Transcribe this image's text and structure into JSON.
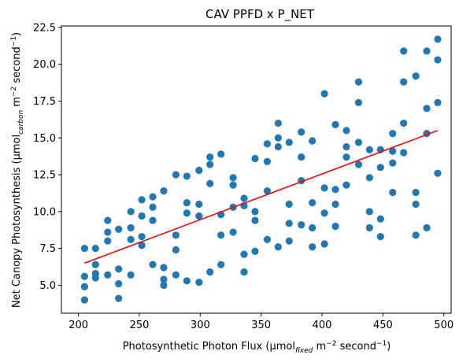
{
  "chart_data": {
    "type": "scatter",
    "title": "CAV PPFD x P_NET",
    "xlabel": {
      "prefix": "Photosynthetic Photon Flux (μmol",
      "sub": "fixed",
      "mid": " m",
      "sup1": "−2",
      "mid2": " second",
      "sup2": "−1",
      "suffix": ")"
    },
    "ylabel": {
      "prefix": "Net Canopy Photosynthesis (μmol",
      "sub": "carbon",
      "mid": " m",
      "sup1": "−2",
      "mid2": " second",
      "sup2": "−1",
      "suffix": ")"
    },
    "xlim": [
      186,
      506
    ],
    "ylim": [
      3.1,
      22.6
    ],
    "xticks": [
      200,
      250,
      300,
      350,
      400,
      450,
      500
    ],
    "yticks": [
      5.0,
      7.5,
      10.0,
      12.5,
      15.0,
      17.5,
      20.0,
      22.5
    ],
    "ytick_labels": [
      "5.0",
      "7.5",
      "10.0",
      "12.5",
      "15.0",
      "17.5",
      "20.0",
      "22.5"
    ],
    "grid": false,
    "point_color": "#1f77b4",
    "line_color": "#ff0000",
    "points": [
      [
        205,
        7.5
      ],
      [
        205,
        5.6
      ],
      [
        205,
        4.9
      ],
      [
        205,
        4.0
      ],
      [
        214,
        7.5
      ],
      [
        214,
        6.4
      ],
      [
        214,
        5.8
      ],
      [
        214,
        5.5
      ],
      [
        224,
        9.4
      ],
      [
        224,
        8.6
      ],
      [
        224,
        8.0
      ],
      [
        224,
        5.7
      ],
      [
        233,
        8.8
      ],
      [
        233,
        6.1
      ],
      [
        233,
        5.1
      ],
      [
        233,
        4.1
      ],
      [
        243,
        10.0
      ],
      [
        243,
        8.9
      ],
      [
        243,
        8.1
      ],
      [
        243,
        5.7
      ],
      [
        252,
        10.8
      ],
      [
        252,
        9.7
      ],
      [
        252,
        8.3
      ],
      [
        252,
        7.7
      ],
      [
        261,
        11.0
      ],
      [
        261,
        10.3
      ],
      [
        261,
        9.4
      ],
      [
        261,
        6.4
      ],
      [
        270,
        11.4
      ],
      [
        270,
        6.2
      ],
      [
        270,
        5.4
      ],
      [
        270,
        5.0
      ],
      [
        280,
        12.5
      ],
      [
        280,
        8.4
      ],
      [
        280,
        7.4
      ],
      [
        280,
        5.7
      ],
      [
        289,
        12.4
      ],
      [
        289,
        10.6
      ],
      [
        289,
        9.9
      ],
      [
        289,
        5.3
      ],
      [
        299,
        12.8
      ],
      [
        299,
        10.5
      ],
      [
        299,
        9.7
      ],
      [
        299,
        5.2
      ],
      [
        308,
        13.7
      ],
      [
        308,
        13.2
      ],
      [
        308,
        11.9
      ],
      [
        308,
        5.9
      ],
      [
        317,
        13.9
      ],
      [
        317,
        9.8
      ],
      [
        317,
        8.4
      ],
      [
        317,
        6.4
      ],
      [
        327,
        12.3
      ],
      [
        327,
        11.8
      ],
      [
        327,
        10.3
      ],
      [
        327,
        8.6
      ],
      [
        336,
        10.9
      ],
      [
        336,
        10.4
      ],
      [
        336,
        7.1
      ],
      [
        336,
        5.9
      ],
      [
        345,
        13.6
      ],
      [
        345,
        10.0
      ],
      [
        345,
        9.4
      ],
      [
        345,
        7.3
      ],
      [
        355,
        14.6
      ],
      [
        355,
        13.4
      ],
      [
        355,
        11.4
      ],
      [
        355,
        8.1
      ],
      [
        364,
        16.0
      ],
      [
        364,
        15.0
      ],
      [
        364,
        14.4
      ],
      [
        364,
        7.6
      ],
      [
        373,
        14.7
      ],
      [
        373,
        10.5
      ],
      [
        373,
        9.2
      ],
      [
        373,
        8.0
      ],
      [
        383,
        15.4
      ],
      [
        383,
        13.7
      ],
      [
        383,
        12.1
      ],
      [
        383,
        9.1
      ],
      [
        392,
        14.8
      ],
      [
        392,
        10.6
      ],
      [
        392,
        8.9
      ],
      [
        392,
        7.6
      ],
      [
        402,
        18.0
      ],
      [
        402,
        11.6
      ],
      [
        402,
        9.9
      ],
      [
        402,
        7.8
      ],
      [
        411,
        15.9
      ],
      [
        411,
        11.5
      ],
      [
        411,
        10.5
      ],
      [
        411,
        9.0
      ],
      [
        420,
        15.5
      ],
      [
        420,
        14.4
      ],
      [
        420,
        13.7
      ],
      [
        420,
        11.8
      ],
      [
        430,
        18.8
      ],
      [
        430,
        17.4
      ],
      [
        430,
        14.7
      ],
      [
        430,
        13.2
      ],
      [
        439,
        14.2
      ],
      [
        439,
        12.3
      ],
      [
        439,
        10.0
      ],
      [
        439,
        8.9
      ],
      [
        448,
        14.2
      ],
      [
        448,
        13.0
      ],
      [
        448,
        9.5
      ],
      [
        448,
        8.3
      ],
      [
        458,
        15.3
      ],
      [
        458,
        14.1
      ],
      [
        458,
        13.3
      ],
      [
        458,
        11.3
      ],
      [
        467,
        20.9
      ],
      [
        467,
        18.8
      ],
      [
        467,
        16.0
      ],
      [
        467,
        14.0
      ],
      [
        477,
        19.2
      ],
      [
        477,
        11.3
      ],
      [
        477,
        10.5
      ],
      [
        477,
        8.4
      ],
      [
        486,
        20.9
      ],
      [
        486,
        17.0
      ],
      [
        486,
        15.3
      ],
      [
        486,
        8.9
      ],
      [
        495,
        21.7
      ],
      [
        495,
        20.3
      ],
      [
        495,
        17.4
      ],
      [
        495,
        12.6
      ]
    ],
    "regression_line": {
      "x": [
        205,
        495
      ],
      "y": [
        6.5,
        15.5
      ]
    }
  }
}
